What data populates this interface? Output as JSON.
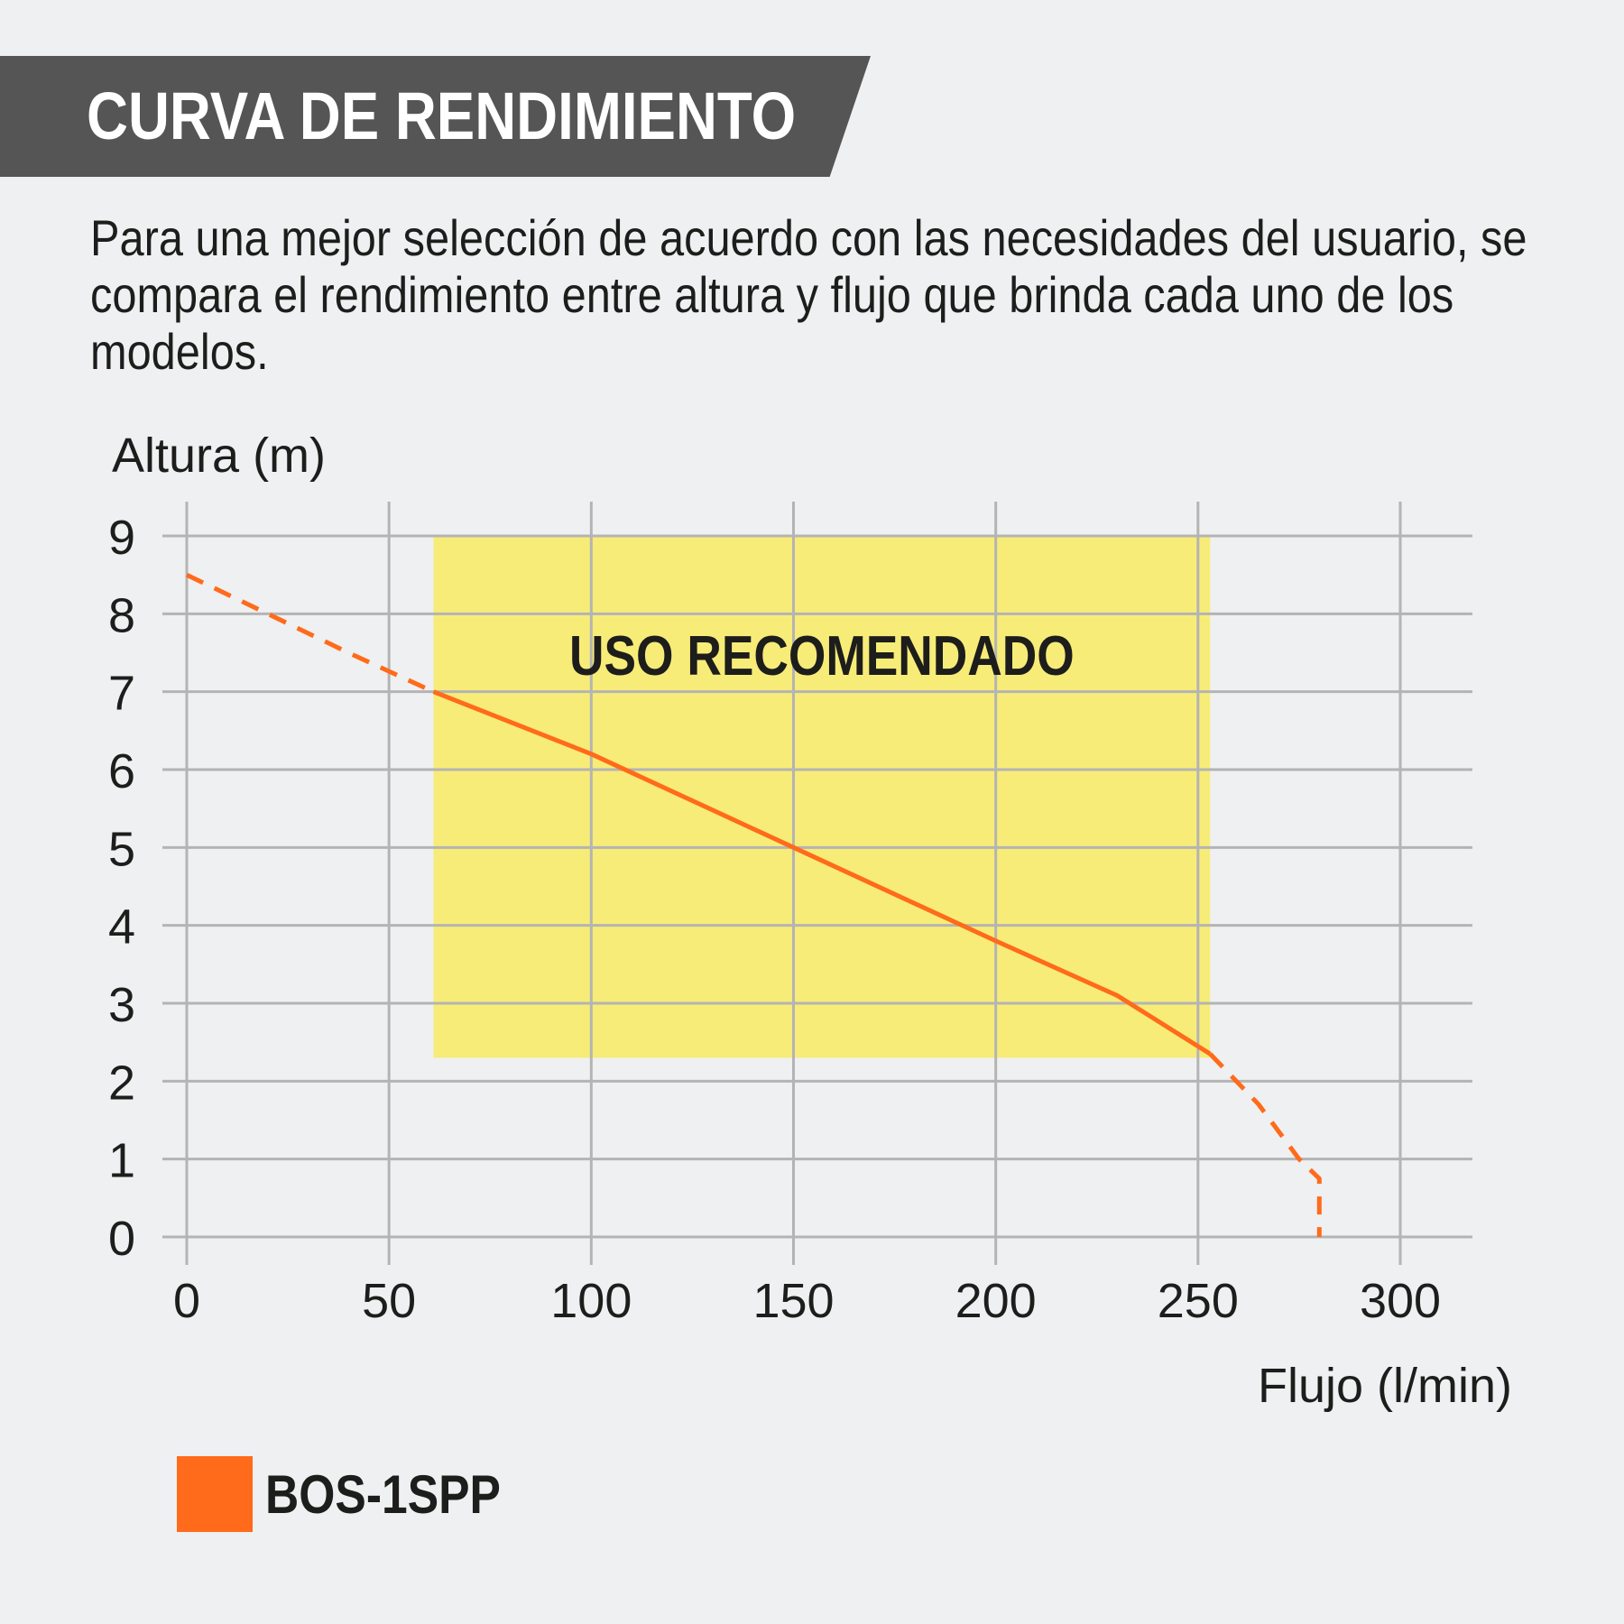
{
  "header": {
    "title": "CURVA DE RENDIMIENTO",
    "description": "Para una mejor selección de acuerdo con las necesidades del usuario, se compara el rendimiento entre altura y flujo que brinda cada uno de los modelos."
  },
  "colors": {
    "banner": "#555555",
    "background": "#eff0f2",
    "grid": "#b4b4b4",
    "recommended_zone": "#f7ec78",
    "series": "#ff6b1a",
    "text": "#1d1d1b"
  },
  "chart_data": {
    "type": "line",
    "xlabel": "Flujo (l/min)",
    "ylabel": "Altura (m)",
    "xlim": [
      0,
      300
    ],
    "ylim": [
      0,
      9
    ],
    "x_ticks": [
      0,
      50,
      100,
      150,
      200,
      250,
      300
    ],
    "y_ticks": [
      0,
      1,
      2,
      3,
      4,
      5,
      6,
      7,
      8,
      9
    ],
    "grid": true,
    "recommended_zone": {
      "label": "USO RECOMENDADO",
      "x_range": [
        61,
        253
      ],
      "y_range": [
        2.3,
        9
      ]
    },
    "series": [
      {
        "name": "BOS-1SPP",
        "color": "#ff6b1a",
        "segments": [
          {
            "style": "dashed",
            "points": [
              [
                0,
                8.5
              ],
              [
                20,
                8.0
              ],
              [
                40,
                7.5
              ],
              [
                61,
                7.0
              ]
            ]
          },
          {
            "style": "solid",
            "points": [
              [
                61,
                7.0
              ],
              [
                100,
                6.2
              ],
              [
                150,
                5.0
              ],
              [
                200,
                3.8
              ],
              [
                230,
                3.1
              ],
              [
                253,
                2.35
              ]
            ]
          },
          {
            "style": "dashed",
            "points": [
              [
                253,
                2.35
              ],
              [
                265,
                1.7
              ],
              [
                275,
                1.0
              ],
              [
                280,
                0.75
              ],
              [
                280,
                0
              ]
            ]
          }
        ]
      }
    ],
    "legend": {
      "position": "bottom-left"
    }
  }
}
